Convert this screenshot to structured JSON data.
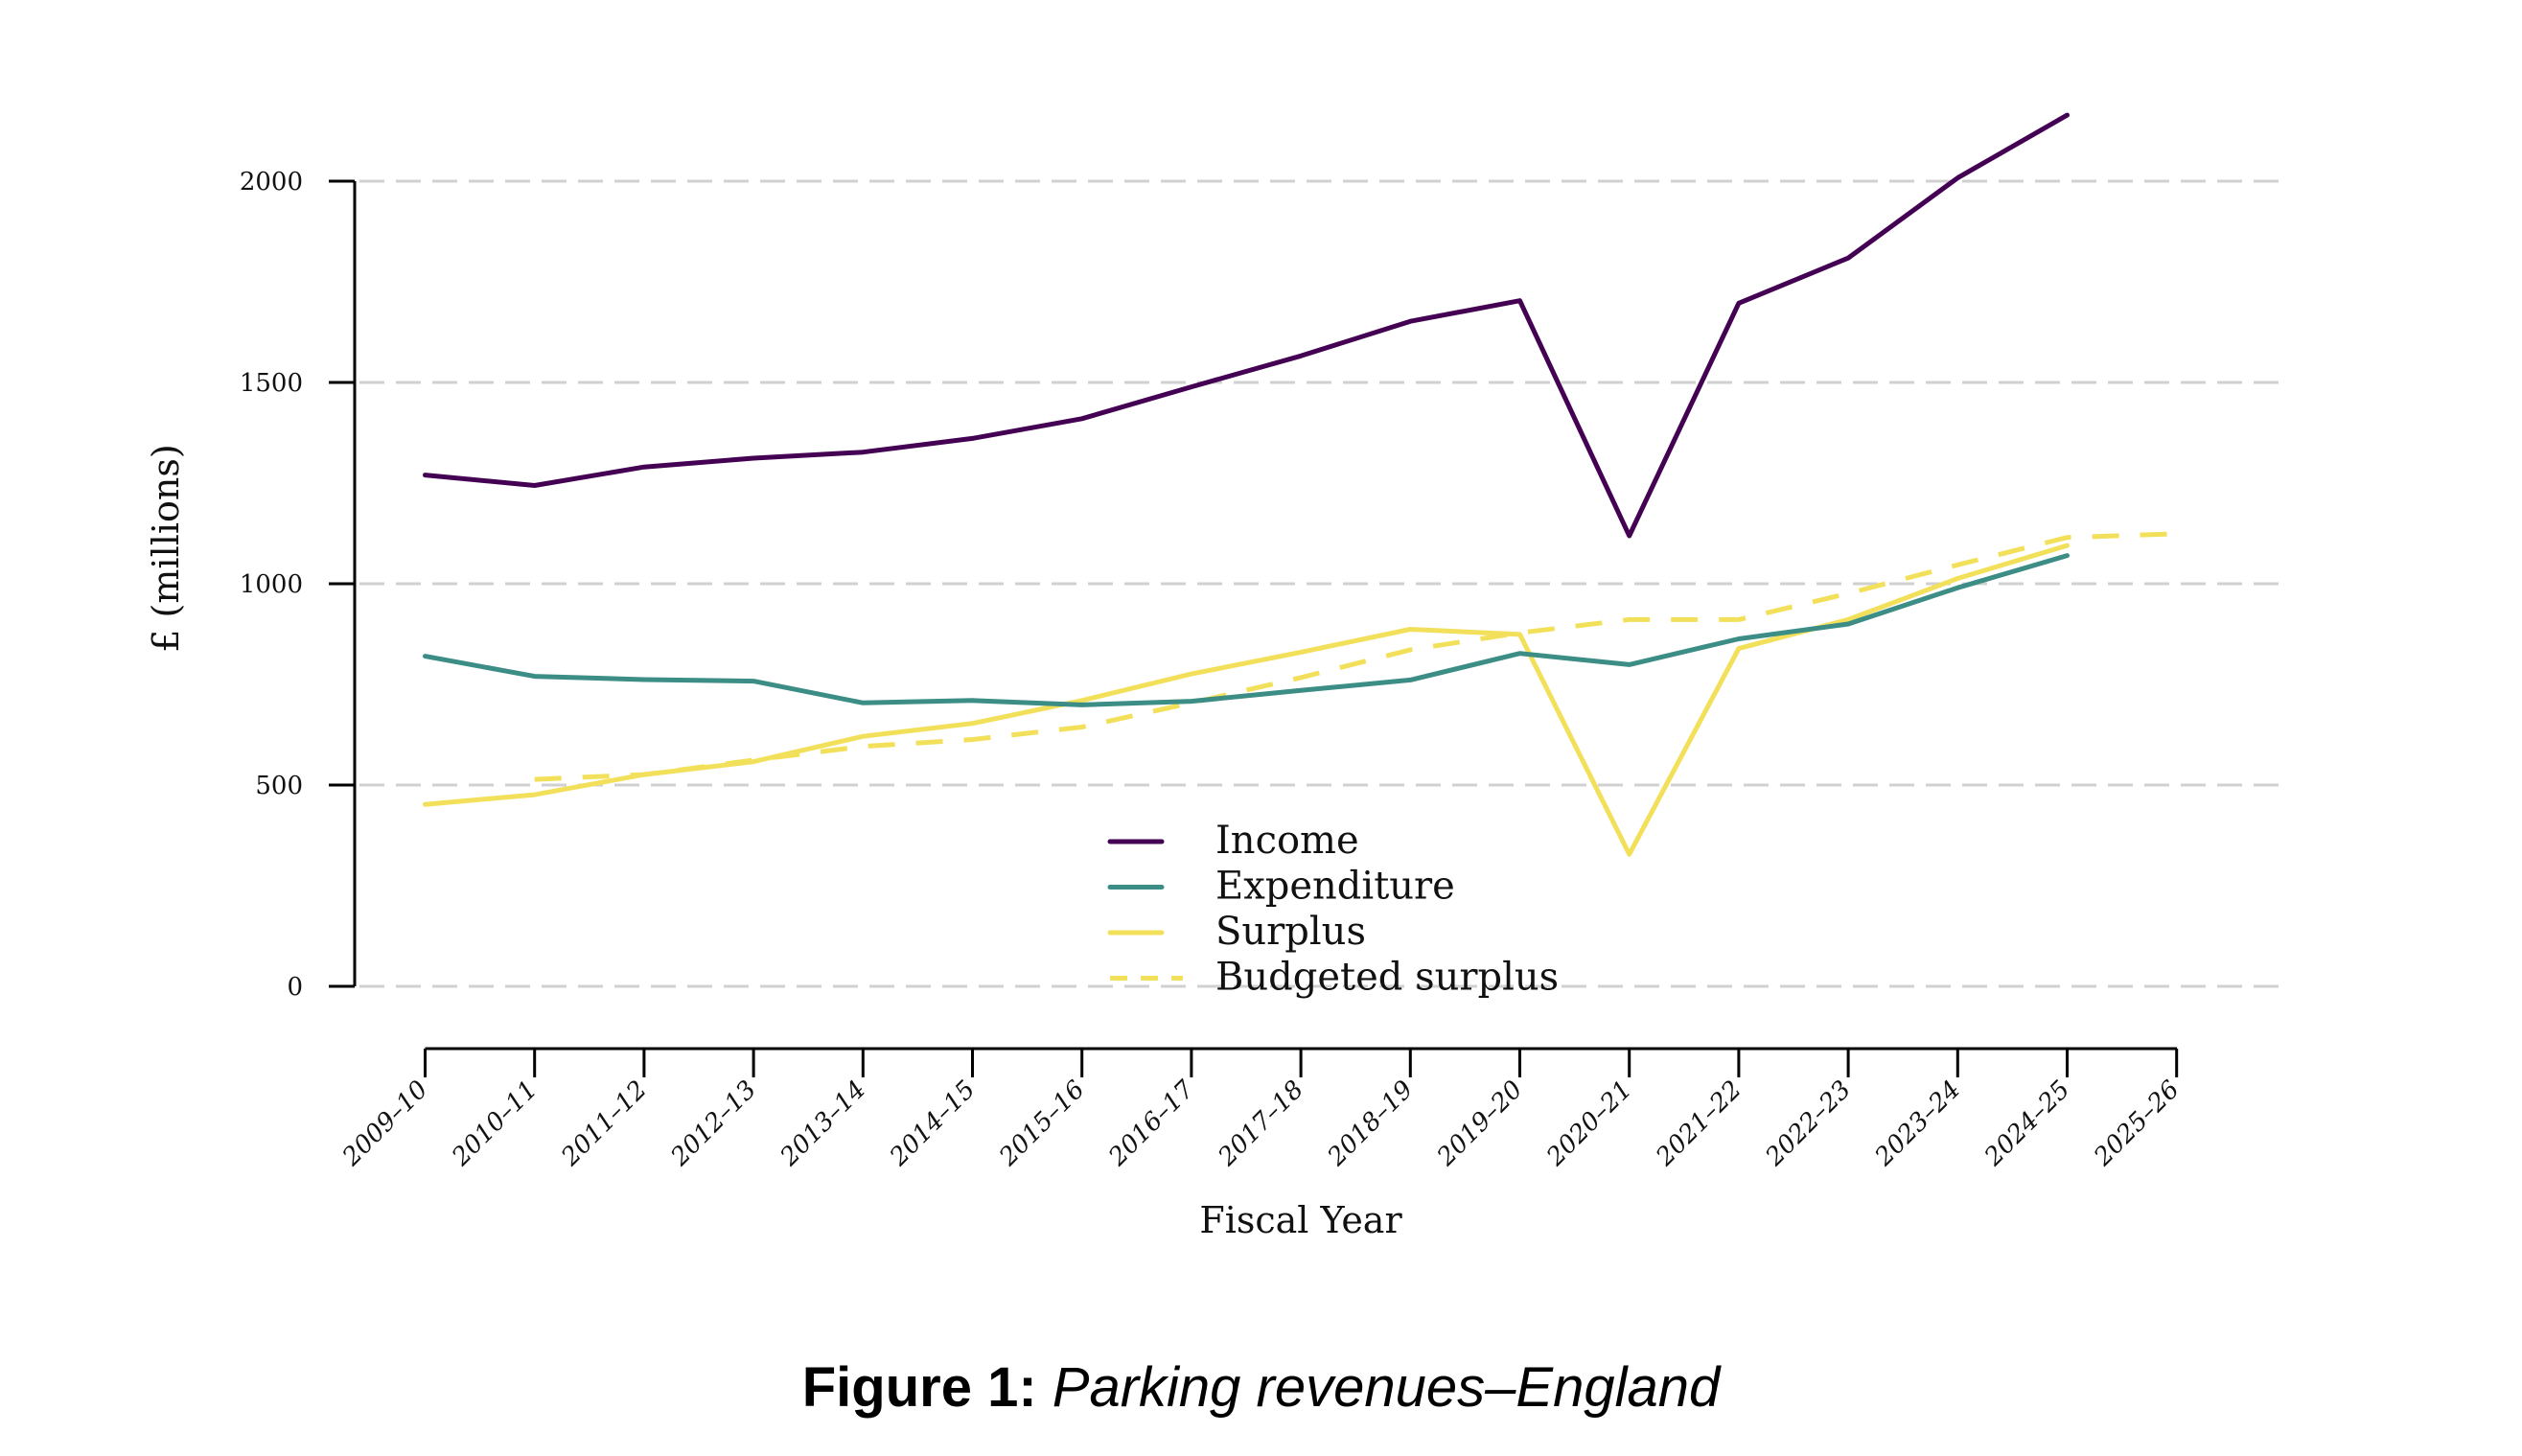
{
  "chart_data": {
    "type": "line",
    "title": "",
    "xlabel": "Fiscal Year",
    "ylabel": "£ (millions)",
    "ylim": [
      0,
      2000
    ],
    "yticks": [
      0,
      500,
      1000,
      1500,
      2000
    ],
    "grid": "horizontal-dashed",
    "legend_position": "bottom-center",
    "categories": [
      "2009-10",
      "2010-11",
      "2011-12",
      "2012-13",
      "2013-14",
      "2014-15",
      "2015-16",
      "2016-17",
      "2017-18",
      "2018-19",
      "2019-20",
      "2020-21",
      "2021-22",
      "2022-23",
      "2023-24",
      "2024-25",
      "2025-26"
    ],
    "series": [
      {
        "name": "Income",
        "color": "#440154",
        "dash": false,
        "values": [
          1270,
          1244,
          1290,
          1312,
          1327,
          1361,
          1410,
          1489,
          1566,
          1652,
          1703,
          1119,
          1697,
          1809,
          2008,
          2164,
          null
        ]
      },
      {
        "name": "Expenditure",
        "color": "#3b8d86",
        "dash": false,
        "values": [
          820,
          770,
          762,
          758,
          704,
          710,
          699,
          708,
          735,
          761,
          827,
          799,
          863,
          900,
          990,
          1070,
          null
        ]
      },
      {
        "name": "Surplus",
        "color": "#f3e05a",
        "dash": false,
        "values": [
          452,
          476,
          526,
          558,
          621,
          653,
          710,
          776,
          830,
          887,
          874,
          328,
          839,
          911,
          1013,
          1095,
          null
        ]
      },
      {
        "name": "Budgeted surplus",
        "color": "#f3e05a",
        "dash": true,
        "values": [
          null,
          514,
          526,
          562,
          596,
          613,
          644,
          704,
          767,
          836,
          878,
          911,
          911,
          976,
          1047,
          1115,
          1124
        ]
      }
    ]
  },
  "caption": {
    "label": "Figure 1:",
    "title": "Parking revenues–England"
  }
}
